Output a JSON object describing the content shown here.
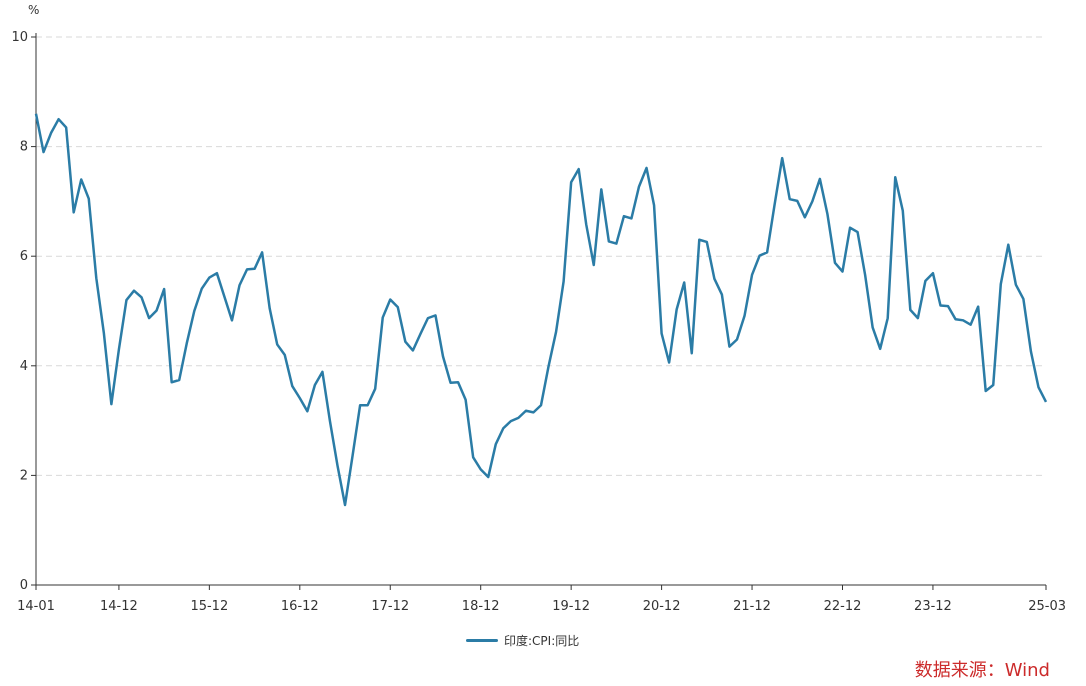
{
  "chart_data": {
    "type": "line",
    "ylabel": "%",
    "ylim": [
      0,
      10
    ],
    "yticks": [
      0,
      2,
      4,
      6,
      8,
      10
    ],
    "x_tick_labels": [
      "14-01",
      "14-12",
      "15-12",
      "16-12",
      "17-12",
      "18-12",
      "19-12",
      "20-12",
      "21-12",
      "22-12",
      "23-12",
      "25-03"
    ],
    "x_start": "2014-01",
    "x_end": "2025-03",
    "series": [
      {
        "name": "印度:CPI:同比",
        "color": "#2b7ca6",
        "values": [
          8.6,
          7.9,
          8.25,
          8.5,
          8.35,
          6.8,
          7.4,
          7.05,
          5.6,
          4.6,
          3.3,
          4.3,
          5.2,
          5.37,
          5.25,
          4.87,
          5.01,
          5.4,
          3.7,
          3.74,
          4.41,
          5.0,
          5.41,
          5.61,
          5.69,
          5.26,
          4.83,
          5.47,
          5.76,
          5.77,
          6.07,
          5.05,
          4.39,
          4.2,
          3.63,
          3.41,
          3.17,
          3.65,
          3.89,
          2.99,
          2.18,
          1.46,
          2.36,
          3.28,
          3.28,
          3.58,
          4.88,
          5.21,
          5.07,
          4.44,
          4.28,
          4.58,
          4.87,
          4.92,
          4.17,
          3.69,
          3.7,
          3.38,
          2.33,
          2.11,
          1.97,
          2.57,
          2.86,
          2.99,
          3.05,
          3.18,
          3.15,
          3.28,
          3.99,
          4.62,
          5.54,
          7.35,
          7.59,
          6.58,
          5.84,
          7.22,
          6.27,
          6.23,
          6.73,
          6.69,
          7.27,
          7.61,
          6.93,
          4.59,
          4.06,
          5.03,
          5.52,
          4.23,
          6.3,
          6.26,
          5.59,
          5.3,
          4.35,
          4.48,
          4.91,
          5.66,
          6.01,
          6.07,
          6.95,
          7.79,
          7.04,
          7.01,
          6.71,
          7.0,
          7.41,
          6.77,
          5.88,
          5.72,
          6.52,
          6.44,
          5.66,
          4.7,
          4.31,
          4.87,
          7.44,
          6.83,
          5.02,
          4.87,
          5.55,
          5.69,
          5.1,
          5.09,
          4.85,
          4.83,
          4.75,
          5.08,
          3.54,
          3.65,
          5.49,
          6.21,
          5.48,
          5.22,
          4.26,
          3.61,
          3.34
        ]
      }
    ],
    "grid": "horizontal-dashed",
    "legend": "bottom-center"
  },
  "source_label": "数据来源：Wind"
}
